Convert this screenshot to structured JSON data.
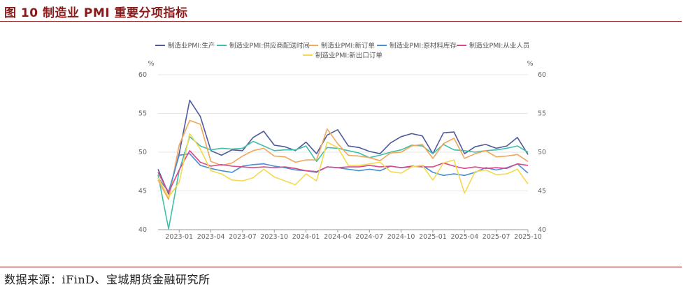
{
  "header": {
    "title": "图 10 制造业 PMI 重要分项指标"
  },
  "footer": {
    "source": "数据来源：iFinD、宝城期货金融研究所"
  },
  "chart_data": {
    "type": "line",
    "y_unit_left": "%",
    "y_unit_right": "%",
    "ylim": [
      40,
      60
    ],
    "yticks": [
      40,
      45,
      50,
      55,
      60
    ],
    "x": [
      "2022-11",
      "2022-12",
      "2023-01",
      "2023-02",
      "2023-03",
      "2023-04",
      "2023-05",
      "2023-06",
      "2023-07",
      "2023-08",
      "2023-09",
      "2023-10",
      "2023-11",
      "2023-12",
      "2024-01",
      "2024-02",
      "2024-03",
      "2024-04",
      "2024-05",
      "2024-06",
      "2024-07",
      "2024-08",
      "2024-09",
      "2024-10",
      "2024-11",
      "2024-12",
      "2025-01",
      "2025-02",
      "2025-03",
      "2025-04",
      "2025-05",
      "2025-06",
      "2025-07",
      "2025-08",
      "2025-09",
      "2025-10"
    ],
    "xtick_labels": [
      "2023-01",
      "2023-04",
      "2023-07",
      "2023-10",
      "2024-01",
      "2024-04",
      "2024-07",
      "2024-10",
      "2025-01",
      "2025-04",
      "2025-07",
      "2025-10"
    ],
    "grid": true,
    "legend_position": "top",
    "series": [
      {
        "name": "制造业PMI:生产",
        "color": "#4e5a9a",
        "values": [
          47.8,
          44.6,
          49.8,
          56.7,
          54.6,
          50.2,
          49.6,
          50.3,
          50.2,
          51.9,
          52.7,
          50.9,
          50.7,
          50.2,
          51.3,
          49.8,
          52.2,
          52.9,
          50.8,
          50.6,
          50.1,
          49.8,
          51.2,
          52.0,
          52.4,
          52.1,
          49.8,
          52.5,
          52.6,
          49.8,
          50.7,
          51.0,
          50.5,
          50.8,
          51.9,
          49.7
        ]
      },
      {
        "name": "制造业PMI:供应商配送时间",
        "color": "#3fbfa8",
        "values": [
          47.1,
          40.1,
          47.6,
          52.0,
          50.8,
          50.3,
          50.5,
          50.4,
          50.5,
          51.4,
          50.8,
          50.2,
          50.3,
          50.3,
          50.8,
          48.8,
          50.6,
          50.5,
          50.2,
          49.9,
          49.3,
          49.6,
          50.0,
          50.3,
          50.9,
          50.8,
          49.8,
          51.0,
          50.3,
          50.2,
          50.0,
          50.2,
          50.3,
          50.5,
          50.8,
          50.0
        ]
      },
      {
        "name": "制造业PMI:新订单",
        "color": "#f2a65a",
        "values": [
          46.4,
          43.9,
          50.9,
          54.1,
          53.6,
          48.8,
          48.3,
          48.6,
          49.5,
          50.2,
          50.5,
          49.5,
          49.4,
          48.7,
          49.0,
          49.0,
          53.0,
          51.1,
          49.6,
          49.5,
          49.3,
          48.9,
          49.9,
          50.0,
          50.8,
          51.0,
          49.2,
          51.1,
          51.8,
          49.2,
          49.8,
          50.2,
          49.4,
          49.5,
          49.7,
          48.8
        ]
      },
      {
        "name": "制造业PMI:原材料库存",
        "color": "#4a8fd1",
        "values": [
          46.7,
          44.9,
          49.6,
          49.8,
          48.3,
          47.9,
          47.6,
          47.4,
          48.2,
          48.4,
          48.5,
          48.2,
          48.0,
          47.7,
          47.6,
          47.4,
          48.1,
          48.0,
          47.8,
          47.6,
          47.8,
          47.6,
          48.2,
          48.0,
          48.1,
          48.3,
          47.4,
          47.0,
          47.2,
          47.0,
          47.4,
          48.0,
          47.7,
          48.0,
          48.5,
          47.3
        ]
      },
      {
        "name": "制造业PMI:从业人员",
        "color": "#d9488a",
        "values": [
          47.4,
          44.8,
          47.7,
          50.2,
          48.7,
          48.2,
          48.4,
          48.2,
          48.1,
          48.0,
          48.1,
          48.0,
          48.1,
          47.9,
          47.6,
          47.5,
          48.1,
          48.0,
          48.1,
          48.1,
          48.3,
          48.1,
          48.2,
          48.0,
          48.2,
          48.1,
          48.1,
          48.6,
          48.2,
          47.9,
          48.1,
          47.9,
          48.0,
          47.9,
          48.5,
          48.3
        ]
      },
      {
        "name": "制造业PMI:新出口订单",
        "color": "#f5d94e",
        "values": [
          46.7,
          44.2,
          46.1,
          52.4,
          50.4,
          47.6,
          47.2,
          46.4,
          46.3,
          46.7,
          47.8,
          46.8,
          46.3,
          45.8,
          47.2,
          46.3,
          51.3,
          50.6,
          48.3,
          48.3,
          48.5,
          48.7,
          47.5,
          47.3,
          48.1,
          48.3,
          46.4,
          48.6,
          49.0,
          44.7,
          47.5,
          47.7,
          47.1,
          47.2,
          47.8,
          45.9
        ]
      }
    ]
  }
}
